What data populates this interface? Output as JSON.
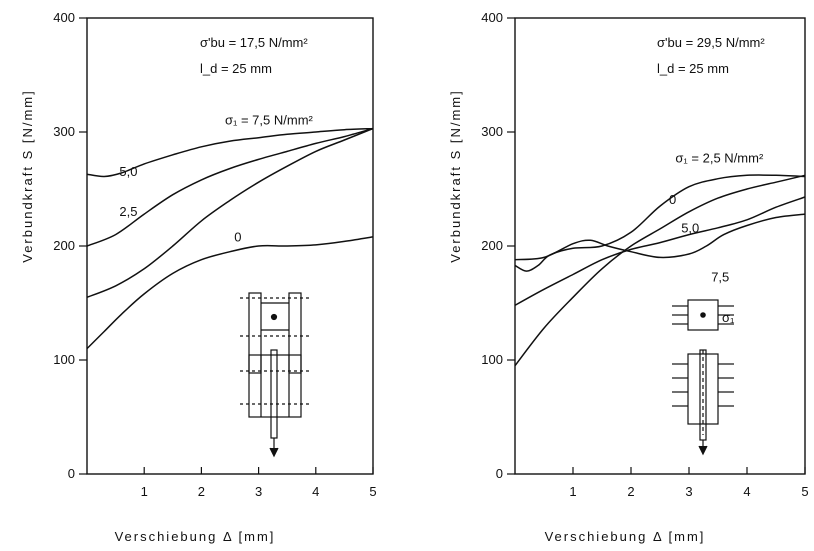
{
  "chart_data": [
    {
      "type": "line",
      "xlabel": "Verschiebung Δ [mm]",
      "ylabel": "Verbundkraft S [N/mm]",
      "xlim": [
        0,
        5
      ],
      "ylim": [
        0,
        400
      ],
      "xticks": [
        "1",
        "2",
        "3",
        "4",
        "5"
      ],
      "yticks": [
        "0",
        "100",
        "200",
        "300",
        "400"
      ],
      "annotations": [
        "σ'bu = 17,5 N/mm²",
        "l_d = 25 mm"
      ],
      "grid": false,
      "series": [
        {
          "name": "σ₁ = 7,5 N/mm²",
          "x": [
            0,
            0.3,
            0.6,
            1,
            1.5,
            2,
            2.5,
            3,
            3.5,
            4,
            4.5,
            5
          ],
          "y": [
            263,
            261,
            264,
            272,
            280,
            287,
            292,
            295,
            298,
            300,
            302,
            303
          ]
        },
        {
          "name": "5,0",
          "x": [
            0,
            0.5,
            1,
            1.5,
            2,
            2.5,
            3,
            3.5,
            4,
            4.5,
            5
          ],
          "y": [
            200,
            210,
            228,
            245,
            258,
            268,
            276,
            283,
            290,
            296,
            303
          ]
        },
        {
          "name": "2,5",
          "x": [
            0,
            0.5,
            1,
            1.5,
            2,
            2.5,
            3,
            3.5,
            4,
            4.5,
            5
          ],
          "y": [
            155,
            165,
            180,
            200,
            222,
            240,
            256,
            270,
            283,
            293,
            303
          ]
        },
        {
          "name": "0",
          "x": [
            0,
            0.3,
            0.6,
            1,
            1.5,
            2,
            2.5,
            3,
            3.5,
            4,
            4.5,
            5
          ],
          "y": [
            110,
            125,
            140,
            158,
            176,
            188,
            195,
            200,
            200,
            201,
            204,
            208
          ]
        }
      ]
    },
    {
      "type": "line",
      "xlabel": "Verschiebung Δ [mm]",
      "ylabel": "Verbundkraft S [N/mm]",
      "xlim": [
        0,
        5
      ],
      "ylim": [
        0,
        400
      ],
      "xticks": [
        "1",
        "2",
        "3",
        "4",
        "5"
      ],
      "yticks": [
        "0",
        "100",
        "200",
        "300",
        "400"
      ],
      "annotations": [
        "σ'bu = 29,5 N/mm²",
        "l_d = 25 mm",
        "σ₁"
      ],
      "grid": false,
      "series": [
        {
          "name": "σ₁ = 2,5 N/mm²",
          "x": [
            0,
            0.2,
            0.4,
            0.6,
            1,
            1.5,
            2,
            2.5,
            3,
            3.5,
            4,
            4.5,
            5
          ],
          "y": [
            183,
            178,
            183,
            192,
            198,
            200,
            212,
            235,
            252,
            259,
            262,
            262,
            261
          ]
        },
        {
          "name": "0",
          "x": [
            0,
            0.5,
            1,
            1.5,
            2,
            2.5,
            3,
            3.5,
            4,
            4.5,
            5
          ],
          "y": [
            95,
            128,
            155,
            180,
            200,
            215,
            230,
            242,
            250,
            256,
            262
          ]
        },
        {
          "name": "5,0",
          "x": [
            0,
            0.5,
            1,
            1.5,
            2,
            2.5,
            3,
            3.5,
            4,
            4.5,
            5
          ],
          "y": [
            148,
            162,
            175,
            188,
            197,
            203,
            210,
            216,
            223,
            234,
            243
          ]
        },
        {
          "name": "7,5",
          "x": [
            0,
            0.5,
            1,
            1.3,
            1.6,
            2,
            2.5,
            3,
            3.3,
            3.6,
            4,
            4.5,
            5
          ],
          "y": [
            188,
            190,
            202,
            205,
            200,
            195,
            190,
            193,
            200,
            210,
            218,
            225,
            228
          ]
        }
      ]
    }
  ]
}
